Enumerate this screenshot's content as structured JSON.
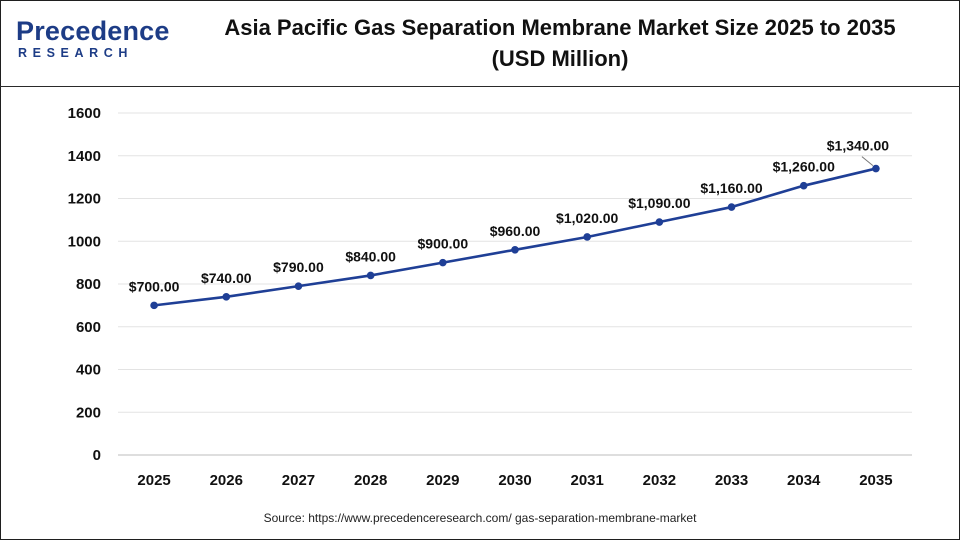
{
  "logo": {
    "brand_line1": "Precedence",
    "brand_line2": "RESEARCH"
  },
  "title": "Asia Pacific Gas Separation Membrane Market Size 2025 to 2035",
  "subtitle": "(USD Million)",
  "source": "Source: https://www.precedenceresearch.com/ gas-separation-membrane-market",
  "colors": {
    "line": "#1f3f96",
    "point": "#1f3f96",
    "grid": "#e3e3e3",
    "text": "#111111",
    "brand": "#1d3c86"
  },
  "chart_data": {
    "type": "line",
    "title": "Asia Pacific Gas Separation Membrane Market Size 2025 to 2035",
    "subtitle": "(USD Million)",
    "xlabel": "",
    "ylabel": "",
    "categories": [
      "2025",
      "2026",
      "2027",
      "2028",
      "2029",
      "2030",
      "2031",
      "2032",
      "2033",
      "2034",
      "2035"
    ],
    "values": [
      700,
      740,
      790,
      840,
      900,
      960,
      1020,
      1090,
      1160,
      1260,
      1340
    ],
    "data_labels": [
      "$700.00",
      "$740.00",
      "$790.00",
      "$840.00",
      "$900.00",
      "$960.00",
      "$1,020.00",
      "$1,090.00",
      "$1,160.00",
      "$1,260.00",
      "$1,340.00"
    ],
    "ylim": [
      0,
      1600
    ],
    "yticks": [
      0,
      200,
      400,
      600,
      800,
      1000,
      1200,
      1400,
      1600
    ],
    "grid": true,
    "legend": "none"
  }
}
